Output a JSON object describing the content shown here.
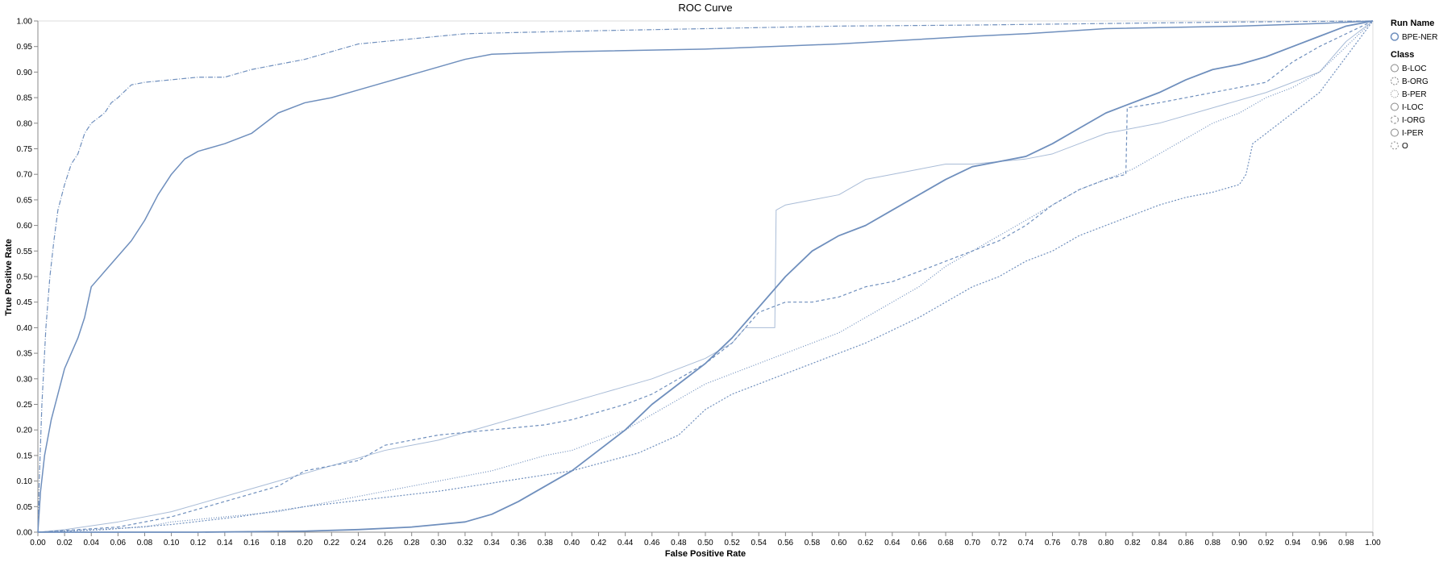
{
  "chart_data": {
    "type": "line",
    "title": "ROC Curve",
    "xlabel": "False Positive Rate",
    "ylabel": "True Positive Rate",
    "xlim": [
      0,
      1
    ],
    "ylim": [
      0,
      1
    ],
    "grid": false,
    "x_ticks": [
      "0.00",
      "0.02",
      "0.04",
      "0.06",
      "0.08",
      "0.10",
      "0.12",
      "0.14",
      "0.16",
      "0.18",
      "0.20",
      "0.22",
      "0.24",
      "0.26",
      "0.28",
      "0.30",
      "0.32",
      "0.34",
      "0.36",
      "0.38",
      "0.40",
      "0.42",
      "0.44",
      "0.46",
      "0.48",
      "0.50",
      "0.52",
      "0.54",
      "0.56",
      "0.58",
      "0.60",
      "0.62",
      "0.64",
      "0.66",
      "0.68",
      "0.70",
      "0.72",
      "0.74",
      "0.76",
      "0.78",
      "0.80",
      "0.82",
      "0.84",
      "0.86",
      "0.88",
      "0.90",
      "0.92",
      "0.94",
      "0.96",
      "0.98",
      "1.00"
    ],
    "y_ticks": [
      "0.00",
      "0.05",
      "0.10",
      "0.15",
      "0.20",
      "0.25",
      "0.30",
      "0.35",
      "0.40",
      "0.45",
      "0.50",
      "0.55",
      "0.60",
      "0.65",
      "0.70",
      "0.75",
      "0.80",
      "0.85",
      "0.90",
      "0.95",
      "1.00"
    ],
    "legend": {
      "placement": "right",
      "run_title": "Run Name",
      "runs": [
        "BPE-NER"
      ],
      "class_title": "Class",
      "classes": [
        "B-LOC",
        "B-ORG",
        "B-PER",
        "I-LOC",
        "I-ORG",
        "I-PER",
        "O"
      ]
    },
    "color": "#6f8fbd",
    "series": [
      {
        "name": "B-LOC",
        "dash": "",
        "width": 1.5,
        "points": [
          [
            0,
            0
          ],
          [
            0.002,
            0.08
          ],
          [
            0.005,
            0.15
          ],
          [
            0.01,
            0.22
          ],
          [
            0.015,
            0.27
          ],
          [
            0.02,
            0.32
          ],
          [
            0.025,
            0.35
          ],
          [
            0.03,
            0.38
          ],
          [
            0.035,
            0.42
          ],
          [
            0.04,
            0.48
          ],
          [
            0.05,
            0.51
          ],
          [
            0.06,
            0.54
          ],
          [
            0.07,
            0.57
          ],
          [
            0.08,
            0.61
          ],
          [
            0.09,
            0.66
          ],
          [
            0.1,
            0.7
          ],
          [
            0.11,
            0.73
          ],
          [
            0.12,
            0.745
          ],
          [
            0.14,
            0.76
          ],
          [
            0.16,
            0.78
          ],
          [
            0.18,
            0.82
          ],
          [
            0.2,
            0.84
          ],
          [
            0.22,
            0.85
          ],
          [
            0.24,
            0.865
          ],
          [
            0.26,
            0.88
          ],
          [
            0.28,
            0.895
          ],
          [
            0.3,
            0.91
          ],
          [
            0.32,
            0.925
          ],
          [
            0.34,
            0.935
          ],
          [
            0.4,
            0.94
          ],
          [
            0.5,
            0.945
          ],
          [
            0.6,
            0.955
          ],
          [
            0.7,
            0.97
          ],
          [
            0.74,
            0.975
          ],
          [
            0.8,
            0.985
          ],
          [
            0.9,
            0.99
          ],
          [
            0.96,
            0.995
          ],
          [
            1.0,
            1.0
          ]
        ]
      },
      {
        "name": "B-ORG",
        "dash": "2,2",
        "width": 1.2,
        "points": [
          [
            0,
            0
          ],
          [
            0.05,
            0.005
          ],
          [
            0.1,
            0.015
          ],
          [
            0.15,
            0.03
          ],
          [
            0.2,
            0.05
          ],
          [
            0.25,
            0.065
          ],
          [
            0.3,
            0.08
          ],
          [
            0.35,
            0.1
          ],
          [
            0.4,
            0.12
          ],
          [
            0.45,
            0.155
          ],
          [
            0.48,
            0.19
          ],
          [
            0.5,
            0.24
          ],
          [
            0.52,
            0.27
          ],
          [
            0.54,
            0.29
          ],
          [
            0.56,
            0.31
          ],
          [
            0.58,
            0.33
          ],
          [
            0.6,
            0.35
          ],
          [
            0.62,
            0.37
          ],
          [
            0.64,
            0.395
          ],
          [
            0.66,
            0.42
          ],
          [
            0.68,
            0.45
          ],
          [
            0.7,
            0.48
          ],
          [
            0.72,
            0.5
          ],
          [
            0.74,
            0.53
          ],
          [
            0.76,
            0.55
          ],
          [
            0.78,
            0.58
          ],
          [
            0.8,
            0.6
          ],
          [
            0.82,
            0.62
          ],
          [
            0.84,
            0.64
          ],
          [
            0.86,
            0.655
          ],
          [
            0.88,
            0.665
          ],
          [
            0.9,
            0.68
          ],
          [
            0.905,
            0.7
          ],
          [
            0.91,
            0.76
          ],
          [
            0.92,
            0.78
          ],
          [
            0.94,
            0.82
          ],
          [
            0.96,
            0.86
          ],
          [
            0.98,
            0.93
          ],
          [
            1.0,
            1.0
          ]
        ]
      },
      {
        "name": "B-PER",
        "dash": "1,2",
        "width": 1.2,
        "points": [
          [
            0,
            0
          ],
          [
            0.08,
            0.01
          ],
          [
            0.1,
            0.02
          ],
          [
            0.14,
            0.03
          ],
          [
            0.18,
            0.04
          ],
          [
            0.22,
            0.06
          ],
          [
            0.26,
            0.08
          ],
          [
            0.3,
            0.1
          ],
          [
            0.34,
            0.12
          ],
          [
            0.38,
            0.15
          ],
          [
            0.4,
            0.16
          ],
          [
            0.42,
            0.18
          ],
          [
            0.44,
            0.2
          ],
          [
            0.46,
            0.23
          ],
          [
            0.48,
            0.26
          ],
          [
            0.5,
            0.29
          ],
          [
            0.52,
            0.31
          ],
          [
            0.54,
            0.33
          ],
          [
            0.56,
            0.35
          ],
          [
            0.58,
            0.37
          ],
          [
            0.6,
            0.39
          ],
          [
            0.62,
            0.42
          ],
          [
            0.64,
            0.45
          ],
          [
            0.66,
            0.48
          ],
          [
            0.68,
            0.52
          ],
          [
            0.7,
            0.55
          ],
          [
            0.72,
            0.58
          ],
          [
            0.74,
            0.61
          ],
          [
            0.76,
            0.64
          ],
          [
            0.78,
            0.67
          ],
          [
            0.8,
            0.69
          ],
          [
            0.82,
            0.71
          ],
          [
            0.84,
            0.74
          ],
          [
            0.86,
            0.77
          ],
          [
            0.88,
            0.8
          ],
          [
            0.9,
            0.82
          ],
          [
            0.92,
            0.85
          ],
          [
            0.94,
            0.87
          ],
          [
            0.96,
            0.9
          ],
          [
            0.98,
            0.95
          ],
          [
            1.0,
            1.0
          ]
        ]
      },
      {
        "name": "I-LOC",
        "dash": "",
        "width": 1.0,
        "opacity": 0.6,
        "points": [
          [
            0,
            0
          ],
          [
            0.02,
            0.005
          ],
          [
            0.06,
            0.02
          ],
          [
            0.1,
            0.04
          ],
          [
            0.14,
            0.07
          ],
          [
            0.18,
            0.1
          ],
          [
            0.22,
            0.13
          ],
          [
            0.26,
            0.16
          ],
          [
            0.3,
            0.18
          ],
          [
            0.34,
            0.21
          ],
          [
            0.38,
            0.24
          ],
          [
            0.42,
            0.27
          ],
          [
            0.46,
            0.3
          ],
          [
            0.5,
            0.34
          ],
          [
            0.52,
            0.37
          ],
          [
            0.53,
            0.4
          ],
          [
            0.552,
            0.4
          ],
          [
            0.553,
            0.63
          ],
          [
            0.56,
            0.64
          ],
          [
            0.58,
            0.65
          ],
          [
            0.6,
            0.66
          ],
          [
            0.62,
            0.69
          ],
          [
            0.64,
            0.7
          ],
          [
            0.66,
            0.71
          ],
          [
            0.68,
            0.72
          ],
          [
            0.7,
            0.72
          ],
          [
            0.74,
            0.73
          ],
          [
            0.76,
            0.74
          ],
          [
            0.78,
            0.76
          ],
          [
            0.8,
            0.78
          ],
          [
            0.84,
            0.8
          ],
          [
            0.88,
            0.83
          ],
          [
            0.92,
            0.86
          ],
          [
            0.96,
            0.9
          ],
          [
            0.98,
            0.96
          ],
          [
            1.0,
            1.0
          ]
        ]
      },
      {
        "name": "I-ORG",
        "dash": "4,3",
        "width": 1.2,
        "points": [
          [
            0,
            0
          ],
          [
            0.06,
            0.01
          ],
          [
            0.1,
            0.03
          ],
          [
            0.14,
            0.06
          ],
          [
            0.18,
            0.09
          ],
          [
            0.2,
            0.12
          ],
          [
            0.22,
            0.13
          ],
          [
            0.24,
            0.14
          ],
          [
            0.26,
            0.17
          ],
          [
            0.3,
            0.19
          ],
          [
            0.34,
            0.2
          ],
          [
            0.38,
            0.21
          ],
          [
            0.4,
            0.22
          ],
          [
            0.42,
            0.235
          ],
          [
            0.44,
            0.25
          ],
          [
            0.46,
            0.27
          ],
          [
            0.48,
            0.3
          ],
          [
            0.5,
            0.33
          ],
          [
            0.52,
            0.37
          ],
          [
            0.54,
            0.43
          ],
          [
            0.56,
            0.45
          ],
          [
            0.58,
            0.45
          ],
          [
            0.6,
            0.46
          ],
          [
            0.62,
            0.48
          ],
          [
            0.64,
            0.49
          ],
          [
            0.66,
            0.51
          ],
          [
            0.68,
            0.53
          ],
          [
            0.7,
            0.55
          ],
          [
            0.72,
            0.57
          ],
          [
            0.74,
            0.6
          ],
          [
            0.76,
            0.64
          ],
          [
            0.78,
            0.67
          ],
          [
            0.8,
            0.69
          ],
          [
            0.815,
            0.7
          ],
          [
            0.816,
            0.83
          ],
          [
            0.84,
            0.84
          ],
          [
            0.88,
            0.86
          ],
          [
            0.92,
            0.88
          ],
          [
            0.94,
            0.92
          ],
          [
            0.96,
            0.95
          ],
          [
            1.0,
            1.0
          ]
        ]
      },
      {
        "name": "I-PER",
        "dash": "",
        "width": 1.8,
        "points": [
          [
            0,
            0
          ],
          [
            0.12,
            0.0
          ],
          [
            0.2,
            0.002
          ],
          [
            0.24,
            0.005
          ],
          [
            0.28,
            0.01
          ],
          [
            0.3,
            0.015
          ],
          [
            0.32,
            0.02
          ],
          [
            0.34,
            0.035
          ],
          [
            0.36,
            0.06
          ],
          [
            0.38,
            0.09
          ],
          [
            0.4,
            0.12
          ],
          [
            0.42,
            0.16
          ],
          [
            0.44,
            0.2
          ],
          [
            0.46,
            0.25
          ],
          [
            0.48,
            0.29
          ],
          [
            0.5,
            0.33
          ],
          [
            0.52,
            0.38
          ],
          [
            0.54,
            0.44
          ],
          [
            0.56,
            0.5
          ],
          [
            0.58,
            0.55
          ],
          [
            0.6,
            0.58
          ],
          [
            0.62,
            0.6
          ],
          [
            0.64,
            0.63
          ],
          [
            0.66,
            0.66
          ],
          [
            0.68,
            0.69
          ],
          [
            0.7,
            0.715
          ],
          [
            0.72,
            0.725
          ],
          [
            0.74,
            0.735
          ],
          [
            0.76,
            0.76
          ],
          [
            0.78,
            0.79
          ],
          [
            0.8,
            0.82
          ],
          [
            0.82,
            0.84
          ],
          [
            0.84,
            0.86
          ],
          [
            0.86,
            0.885
          ],
          [
            0.88,
            0.905
          ],
          [
            0.9,
            0.915
          ],
          [
            0.92,
            0.93
          ],
          [
            0.94,
            0.95
          ],
          [
            0.96,
            0.97
          ],
          [
            0.98,
            0.99
          ],
          [
            1.0,
            1.0
          ]
        ]
      },
      {
        "name": "O",
        "dash": "6,2,1,2",
        "width": 1.2,
        "points": [
          [
            0,
            0
          ],
          [
            0.001,
            0.1
          ],
          [
            0.003,
            0.25
          ],
          [
            0.006,
            0.4
          ],
          [
            0.009,
            0.5
          ],
          [
            0.012,
            0.57
          ],
          [
            0.015,
            0.63
          ],
          [
            0.02,
            0.68
          ],
          [
            0.025,
            0.72
          ],
          [
            0.03,
            0.74
          ],
          [
            0.035,
            0.78
          ],
          [
            0.04,
            0.8
          ],
          [
            0.05,
            0.82
          ],
          [
            0.055,
            0.84
          ],
          [
            0.06,
            0.85
          ],
          [
            0.07,
            0.875
          ],
          [
            0.08,
            0.88
          ],
          [
            0.1,
            0.885
          ],
          [
            0.12,
            0.89
          ],
          [
            0.14,
            0.89
          ],
          [
            0.16,
            0.905
          ],
          [
            0.18,
            0.915
          ],
          [
            0.2,
            0.925
          ],
          [
            0.24,
            0.955
          ],
          [
            0.28,
            0.965
          ],
          [
            0.32,
            0.975
          ],
          [
            0.4,
            0.98
          ],
          [
            0.5,
            0.985
          ],
          [
            0.6,
            0.99
          ],
          [
            0.7,
            0.992
          ],
          [
            0.8,
            0.995
          ],
          [
            0.9,
            0.998
          ],
          [
            1.0,
            1.0
          ]
        ]
      }
    ]
  }
}
